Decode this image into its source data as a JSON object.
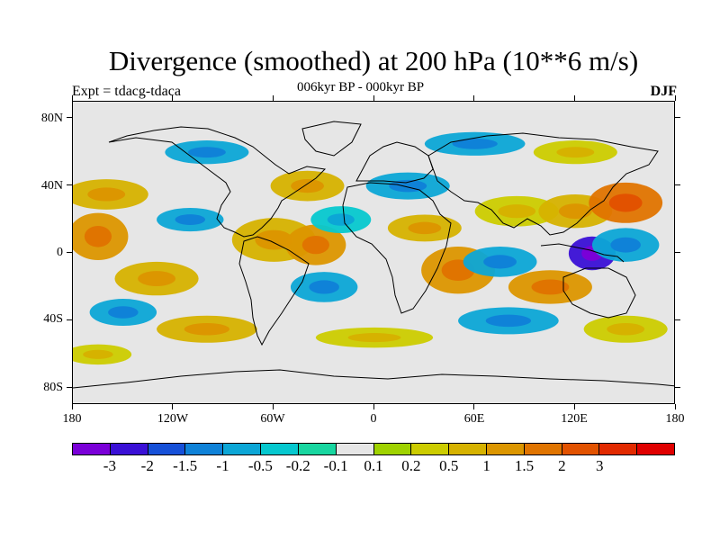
{
  "header": {
    "title": "Divergence (smoothed) at 200 hPa (10**6 m/s)",
    "experiment": "Expt = tdacg-tdaca",
    "period": "006kyr BP - 000kyr BP",
    "season": "DJF"
  },
  "axes": {
    "lat_labels": [
      "80N",
      "40N",
      "0",
      "40S",
      "80S"
    ],
    "lon_labels": [
      "180",
      "120W",
      "60W",
      "0",
      "60E",
      "120E",
      "180"
    ]
  },
  "colorbar": {
    "colors": [
      "#7a00d8",
      "#3a10d6",
      "#1650d8",
      "#0f82d8",
      "#0ca6d6",
      "#06c8cf",
      "#18d6a0",
      "#e6e6e6",
      "#9fd200",
      "#cccc00",
      "#d6b200",
      "#dc9600",
      "#e07400",
      "#e25200",
      "#e22a00",
      "#e00000"
    ],
    "labels": [
      "-3",
      "-2",
      "-1.5",
      "-1",
      "-0.5",
      "-0.2",
      "-0.1",
      "0.1",
      "0.2",
      "0.5",
      "1",
      "1.5",
      "2",
      "3"
    ]
  },
  "field_blobs": [
    {
      "lon": -165,
      "lat": 10,
      "rx": 18,
      "ry": 14,
      "level": 11
    },
    {
      "lon": -160,
      "lat": 35,
      "rx": 25,
      "ry": 9,
      "level": 10
    },
    {
      "lon": -130,
      "lat": -15,
      "rx": 25,
      "ry": 10,
      "level": 10
    },
    {
      "lon": -110,
      "lat": 20,
      "rx": 20,
      "ry": 7,
      "level": 4
    },
    {
      "lon": -150,
      "lat": -35,
      "rx": 20,
      "ry": 8,
      "level": 4
    },
    {
      "lon": -60,
      "lat": 8,
      "rx": 25,
      "ry": 13,
      "level": 10
    },
    {
      "lon": -35,
      "lat": 5,
      "rx": 18,
      "ry": 12,
      "level": 11
    },
    {
      "lon": -30,
      "lat": -20,
      "rx": 20,
      "ry": 9,
      "level": 4
    },
    {
      "lon": -40,
      "lat": 40,
      "rx": 22,
      "ry": 9,
      "level": 10
    },
    {
      "lon": -20,
      "lat": 20,
      "rx": 18,
      "ry": 8,
      "level": 5
    },
    {
      "lon": 20,
      "lat": 40,
      "rx": 25,
      "ry": 8,
      "level": 4
    },
    {
      "lon": 30,
      "lat": 15,
      "rx": 22,
      "ry": 8,
      "level": 10
    },
    {
      "lon": 50,
      "lat": -10,
      "rx": 22,
      "ry": 14,
      "level": 11
    },
    {
      "lon": 85,
      "lat": 25,
      "rx": 25,
      "ry": 9,
      "level": 9
    },
    {
      "lon": 75,
      "lat": -5,
      "rx": 22,
      "ry": 9,
      "level": 4
    },
    {
      "lon": 120,
      "lat": 25,
      "rx": 22,
      "ry": 10,
      "level": 10
    },
    {
      "lon": 150,
      "lat": 30,
      "rx": 22,
      "ry": 12,
      "level": 12
    },
    {
      "lon": 130,
      "lat": 0,
      "rx": 14,
      "ry": 10,
      "level": 1
    },
    {
      "lon": 150,
      "lat": 5,
      "rx": 20,
      "ry": 10,
      "level": 4
    },
    {
      "lon": 105,
      "lat": -20,
      "rx": 25,
      "ry": 10,
      "level": 11
    },
    {
      "lon": 80,
      "lat": -40,
      "rx": 30,
      "ry": 8,
      "level": 4
    },
    {
      "lon": -100,
      "lat": -45,
      "rx": 30,
      "ry": 8,
      "level": 10
    },
    {
      "lon": 0,
      "lat": -50,
      "rx": 35,
      "ry": 6,
      "level": 9
    },
    {
      "lon": 150,
      "lat": -45,
      "rx": 25,
      "ry": 8,
      "level": 9
    },
    {
      "lon": -100,
      "lat": 60,
      "rx": 25,
      "ry": 7,
      "level": 4
    },
    {
      "lon": 60,
      "lat": 65,
      "rx": 30,
      "ry": 7,
      "level": 4
    },
    {
      "lon": -165,
      "lat": -60,
      "rx": 20,
      "ry": 6,
      "level": 9
    },
    {
      "lon": 120,
      "lat": 60,
      "rx": 25,
      "ry": 7,
      "level": 9
    }
  ]
}
